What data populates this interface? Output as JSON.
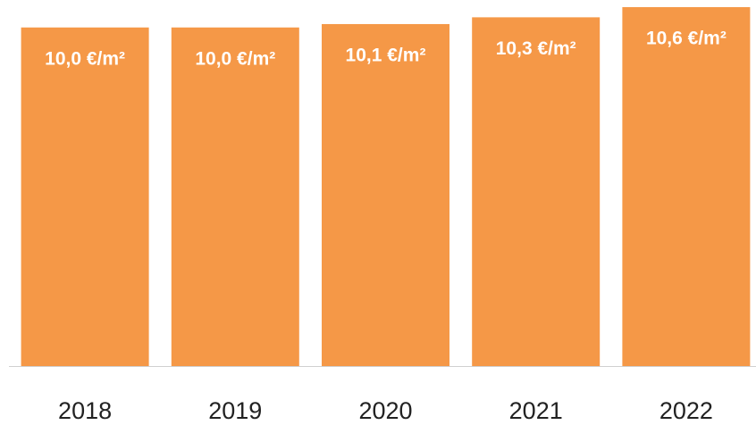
{
  "chart_data": {
    "type": "bar",
    "categories": [
      "2018",
      "2019",
      "2020",
      "2021",
      "2022"
    ],
    "values": [
      10.0,
      10.0,
      10.1,
      10.3,
      10.6
    ],
    "value_labels": [
      "10,0 €/m²",
      "10,0 €/m²",
      "10,1 €/m²",
      "10,3 €/m²",
      "10,6 €/m²"
    ],
    "color": "#f59847"
  }
}
